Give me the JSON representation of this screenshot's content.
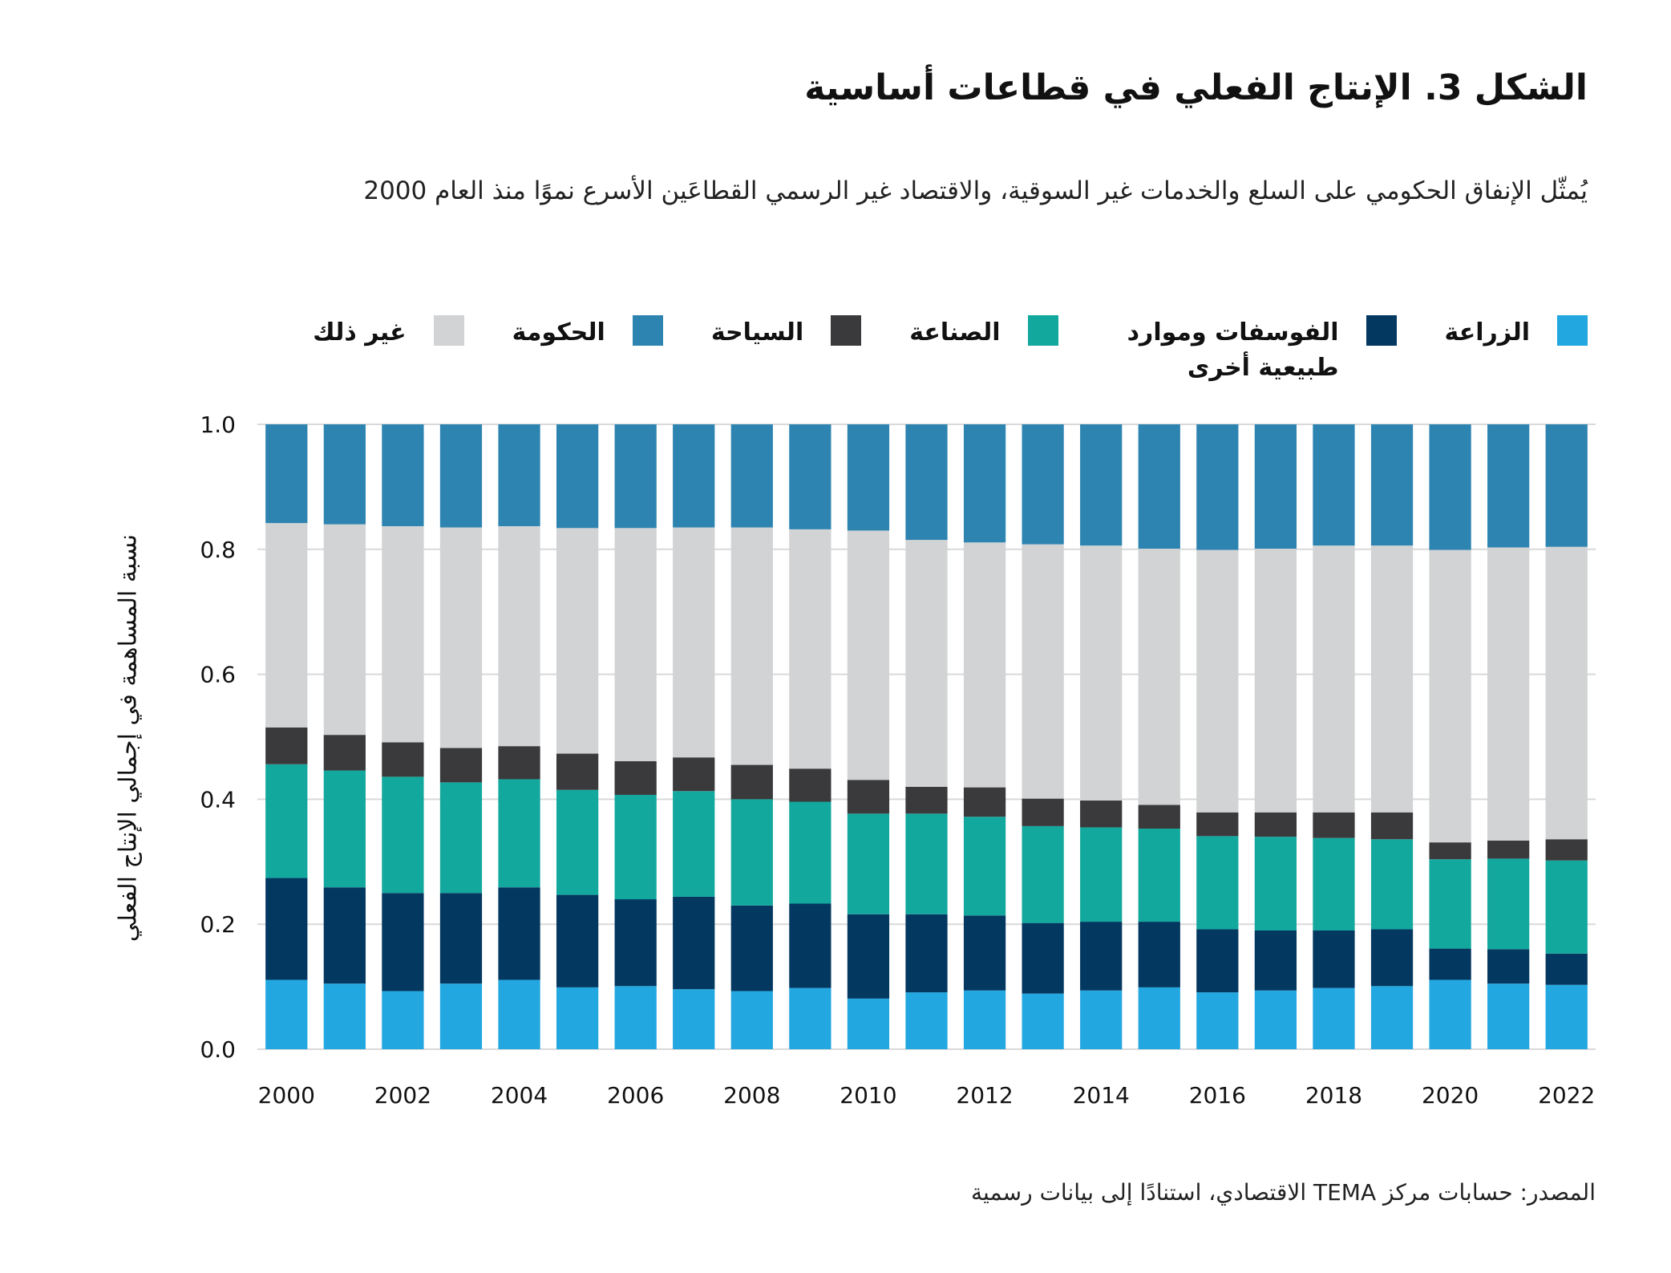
{
  "title": "الشكل 3. الإنتاج الفعلي في قطاعات أساسية",
  "subtitle": "يُمثّل الإنفاق الحكومي على السلع والخدمات غير السوقية، والاقتصاد غير الرسمي القطاعَين الأسرع نموًا منذ العام 2000",
  "source": "المصدر: حسابات مركز TEMA الاقتصادي، استنادًا إلى بيانات رسمية",
  "chart_data": {
    "type": "bar",
    "stacked": true,
    "title": "الشكل 3. الإنتاج الفعلي في قطاعات أساسية",
    "xlabel": "",
    "ylabel": "نسبة المساهمة في إجمالي الإنتاج الفعلي",
    "ylim": [
      0,
      1.0
    ],
    "yticks": [
      "0.0",
      "0.2",
      "0.4",
      "0.6",
      "0.8",
      "1.0"
    ],
    "grid": true,
    "legend_position": "top",
    "categories": [
      "2000",
      "2001",
      "2002",
      "2003",
      "2004",
      "2005",
      "2006",
      "2007",
      "2008",
      "2009",
      "2010",
      "2011",
      "2012",
      "2013",
      "2014",
      "2015",
      "2016",
      "2017",
      "2018",
      "2019",
      "2020",
      "2021",
      "2022"
    ],
    "xtick_labels": [
      "2000",
      "2002",
      "2004",
      "2006",
      "2008",
      "2010",
      "2012",
      "2014",
      "2016",
      "2018",
      "2020",
      "2022"
    ],
    "series": [
      {
        "name": "الزراعة",
        "color": "#22a7e0",
        "values": [
          0.111,
          0.105,
          0.093,
          0.105,
          0.111,
          0.099,
          0.101,
          0.096,
          0.093,
          0.098,
          0.081,
          0.091,
          0.094,
          0.089,
          0.094,
          0.099,
          0.091,
          0.094,
          0.098,
          0.101,
          0.111,
          0.105,
          0.103
        ]
      },
      {
        "name": "الفوسفات وموارد طبيعية أخرى",
        "color": "#033861",
        "values": [
          0.163,
          0.154,
          0.157,
          0.145,
          0.148,
          0.148,
          0.139,
          0.148,
          0.137,
          0.135,
          0.135,
          0.125,
          0.12,
          0.113,
          0.11,
          0.105,
          0.101,
          0.096,
          0.092,
          0.091,
          0.05,
          0.055,
          0.05
        ]
      },
      {
        "name": "الصناعة",
        "color": "#13a89e",
        "values": [
          0.182,
          0.187,
          0.186,
          0.177,
          0.173,
          0.168,
          0.167,
          0.169,
          0.17,
          0.163,
          0.161,
          0.161,
          0.158,
          0.155,
          0.151,
          0.149,
          0.149,
          0.15,
          0.148,
          0.144,
          0.143,
          0.145,
          0.149
        ]
      },
      {
        "name": "السياحة",
        "color": "#3a3a3c",
        "values": [
          0.059,
          0.057,
          0.055,
          0.055,
          0.053,
          0.058,
          0.054,
          0.054,
          0.055,
          0.053,
          0.054,
          0.043,
          0.047,
          0.044,
          0.043,
          0.038,
          0.038,
          0.039,
          0.041,
          0.043,
          0.027,
          0.029,
          0.034
        ]
      },
      {
        "name": "غير ذلك",
        "color": "#d1d3d4",
        "values": [
          0.327,
          0.337,
          0.346,
          0.353,
          0.352,
          0.361,
          0.373,
          0.368,
          0.38,
          0.383,
          0.399,
          0.395,
          0.392,
          0.407,
          0.408,
          0.41,
          0.42,
          0.422,
          0.427,
          0.427,
          0.468,
          0.469,
          0.468
        ]
      },
      {
        "name": "الحكومة",
        "color": "#2e84b1",
        "values": [
          0.158,
          0.16,
          0.163,
          0.165,
          0.163,
          0.166,
          0.166,
          0.165,
          0.165,
          0.168,
          0.17,
          0.185,
          0.189,
          0.192,
          0.194,
          0.199,
          0.201,
          0.199,
          0.194,
          0.194,
          0.201,
          0.197,
          0.196
        ]
      }
    ],
    "legend_order": [
      "الزراعة",
      "الفوسفات وموارد طبيعية أخرى",
      "الصناعة",
      "السياحة",
      "الحكومة",
      "غير ذلك"
    ]
  }
}
